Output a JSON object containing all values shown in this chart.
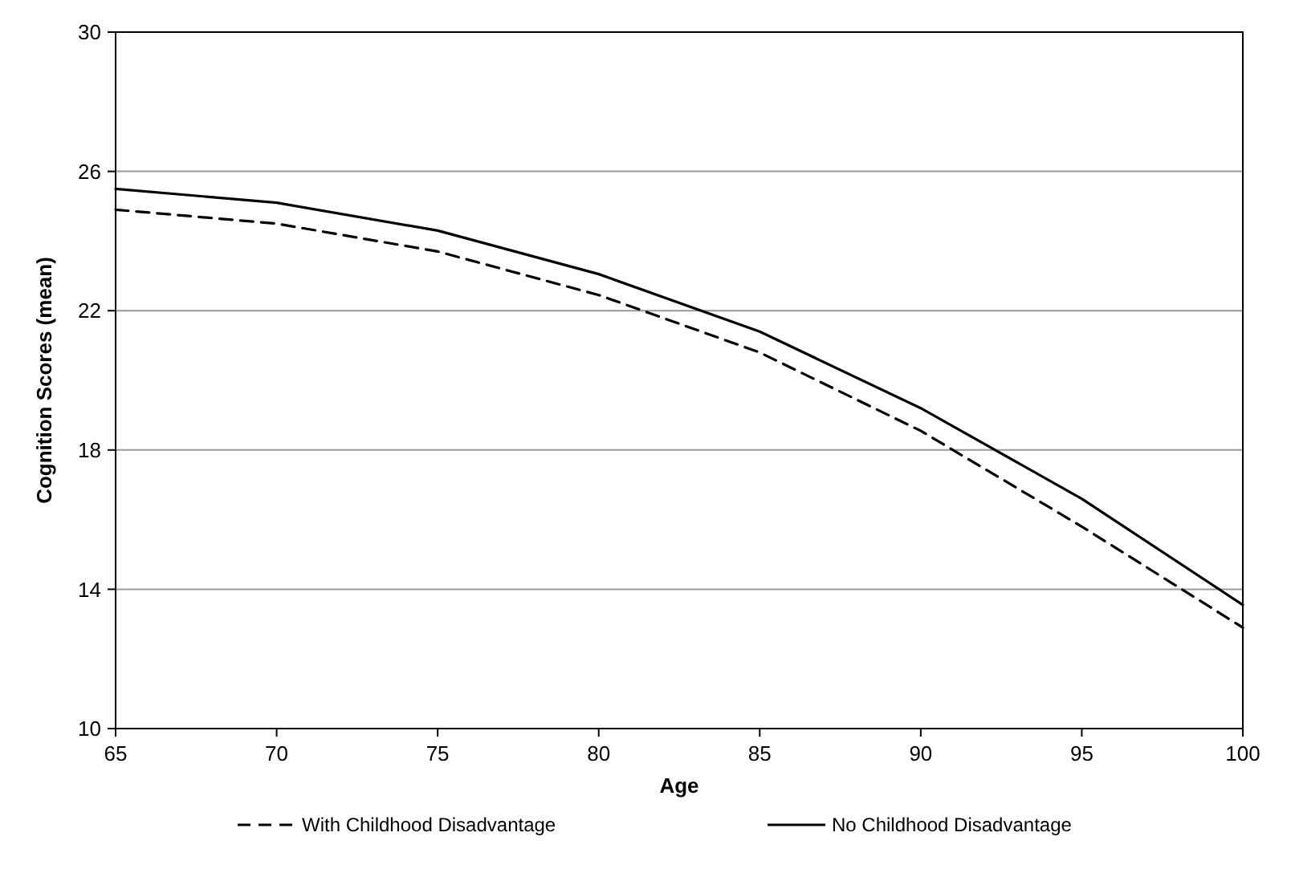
{
  "chart_data": {
    "type": "line",
    "xlabel": "Age",
    "ylabel": "Cognition Scores (mean)",
    "x": [
      65,
      70,
      75,
      80,
      85,
      90,
      95,
      100
    ],
    "series": [
      {
        "name": "With Childhood Disadvantage",
        "color": "#000000",
        "line_style": "dashed",
        "values": [
          24.9,
          24.5,
          23.7,
          22.45,
          20.8,
          18.55,
          15.8,
          12.9
        ]
      },
      {
        "name": "No Childhood Disadvantage",
        "color": "#000000",
        "line_style": "solid",
        "values": [
          25.5,
          25.1,
          24.3,
          23.05,
          21.4,
          19.2,
          16.6,
          13.55
        ]
      }
    ],
    "xlim": [
      65,
      100
    ],
    "xticks": [
      65,
      70,
      75,
      80,
      85,
      90,
      95,
      100
    ],
    "ylim": [
      10,
      30
    ],
    "yticks": [
      10,
      14,
      18,
      22,
      26,
      30
    ],
    "grid": "y",
    "legend": "bottom",
    "marker": "none"
  }
}
